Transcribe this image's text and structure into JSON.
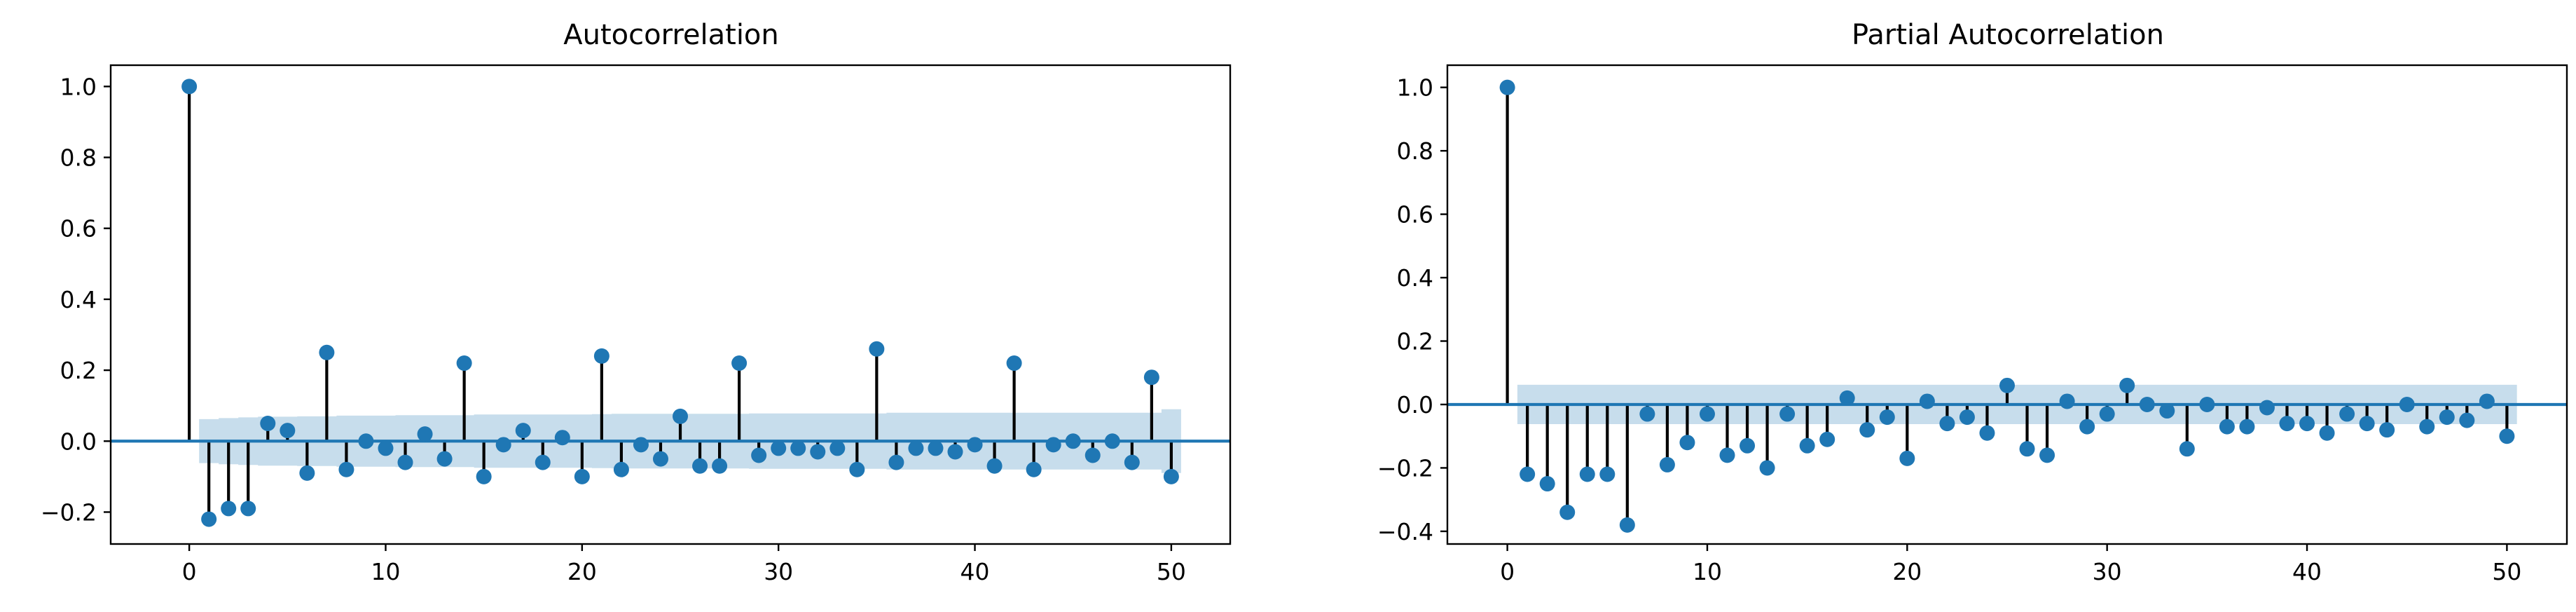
{
  "colors": {
    "marker": "#1f77b4",
    "stem": "#000000",
    "band": "#1f77b4",
    "band_opacity": 0.25,
    "baseline": "#1f77b4"
  },
  "chart_data": [
    {
      "type": "stem",
      "title": "Autocorrelation",
      "xlim": [
        -4,
        53
      ],
      "ylim": [
        -0.29,
        1.06
      ],
      "xticks": [
        0,
        10,
        20,
        30,
        40,
        50
      ],
      "yticks": [
        -0.2,
        0.0,
        0.2,
        0.4,
        0.6,
        0.8,
        1.0
      ],
      "lags": [
        0,
        1,
        2,
        3,
        4,
        5,
        6,
        7,
        8,
        9,
        10,
        11,
        12,
        13,
        14,
        15,
        16,
        17,
        18,
        19,
        20,
        21,
        22,
        23,
        24,
        25,
        26,
        27,
        28,
        29,
        30,
        31,
        32,
        33,
        34,
        35,
        36,
        37,
        38,
        39,
        40,
        41,
        42,
        43,
        44,
        45,
        46,
        47,
        48,
        49,
        50
      ],
      "values": [
        1.0,
        -0.22,
        -0.19,
        -0.19,
        0.05,
        0.03,
        -0.09,
        0.25,
        -0.08,
        0.0,
        -0.02,
        -0.06,
        0.02,
        -0.05,
        0.22,
        -0.1,
        -0.01,
        0.03,
        -0.06,
        0.01,
        -0.1,
        0.24,
        -0.08,
        -0.01,
        -0.05,
        0.07,
        -0.07,
        -0.07,
        0.22,
        -0.04,
        -0.02,
        -0.02,
        -0.03,
        -0.02,
        -0.08,
        0.26,
        -0.06,
        -0.02,
        -0.02,
        -0.03,
        -0.01,
        -0.07,
        0.22,
        -0.08,
        -0.01,
        0.0,
        -0.04,
        0.0,
        -0.06,
        0.18,
        -0.1
      ],
      "confidence_band": [
        0,
        0.062,
        0.065,
        0.067,
        0.069,
        0.069,
        0.07,
        0.07,
        0.072,
        0.072,
        0.072,
        0.073,
        0.073,
        0.073,
        0.073,
        0.075,
        0.075,
        0.075,
        0.075,
        0.075,
        0.075,
        0.076,
        0.077,
        0.077,
        0.077,
        0.077,
        0.077,
        0.077,
        0.077,
        0.078,
        0.078,
        0.078,
        0.078,
        0.078,
        0.078,
        0.078,
        0.08,
        0.08,
        0.08,
        0.08,
        0.08,
        0.08,
        0.08,
        0.08,
        0.08,
        0.08,
        0.08,
        0.08,
        0.08,
        0.08,
        0.09
      ]
    },
    {
      "type": "stem",
      "title": "Partial Autocorrelation",
      "xlim": [
        -3,
        53
      ],
      "ylim": [
        -0.44,
        1.07
      ],
      "xticks": [
        0,
        10,
        20,
        30,
        40,
        50
      ],
      "yticks": [
        -0.4,
        -0.2,
        0.0,
        0.2,
        0.4,
        0.6,
        0.8,
        1.0
      ],
      "lags": [
        0,
        1,
        2,
        3,
        4,
        5,
        6,
        7,
        8,
        9,
        10,
        11,
        12,
        13,
        14,
        15,
        16,
        17,
        18,
        19,
        20,
        21,
        22,
        23,
        24,
        25,
        26,
        27,
        28,
        29,
        30,
        31,
        32,
        33,
        34,
        35,
        36,
        37,
        38,
        39,
        40,
        41,
        42,
        43,
        44,
        45,
        46,
        47,
        48,
        49,
        50
      ],
      "values": [
        1.0,
        -0.22,
        -0.25,
        -0.34,
        -0.22,
        -0.22,
        -0.38,
        -0.03,
        -0.19,
        -0.12,
        -0.03,
        -0.16,
        -0.13,
        -0.2,
        -0.03,
        -0.13,
        -0.11,
        0.02,
        -0.08,
        -0.04,
        -0.17,
        0.01,
        -0.06,
        -0.04,
        -0.09,
        0.06,
        -0.14,
        -0.16,
        0.01,
        -0.07,
        -0.03,
        0.06,
        0.0,
        -0.02,
        -0.14,
        0.0,
        -0.07,
        -0.07,
        -0.01,
        -0.06,
        -0.06,
        -0.09,
        -0.03,
        -0.06,
        -0.08,
        0.0,
        -0.07,
        -0.04,
        -0.05,
        0.01,
        -0.1
      ],
      "confidence_band": [
        0,
        0.062,
        0.062,
        0.062,
        0.062,
        0.062,
        0.062,
        0.062,
        0.062,
        0.062,
        0.062,
        0.062,
        0.062,
        0.062,
        0.062,
        0.062,
        0.062,
        0.062,
        0.062,
        0.062,
        0.062,
        0.062,
        0.062,
        0.062,
        0.062,
        0.062,
        0.062,
        0.062,
        0.062,
        0.062,
        0.062,
        0.062,
        0.062,
        0.062,
        0.062,
        0.062,
        0.062,
        0.062,
        0.062,
        0.062,
        0.062,
        0.062,
        0.062,
        0.062,
        0.062,
        0.062,
        0.062,
        0.062,
        0.062,
        0.062,
        0.062
      ]
    }
  ]
}
